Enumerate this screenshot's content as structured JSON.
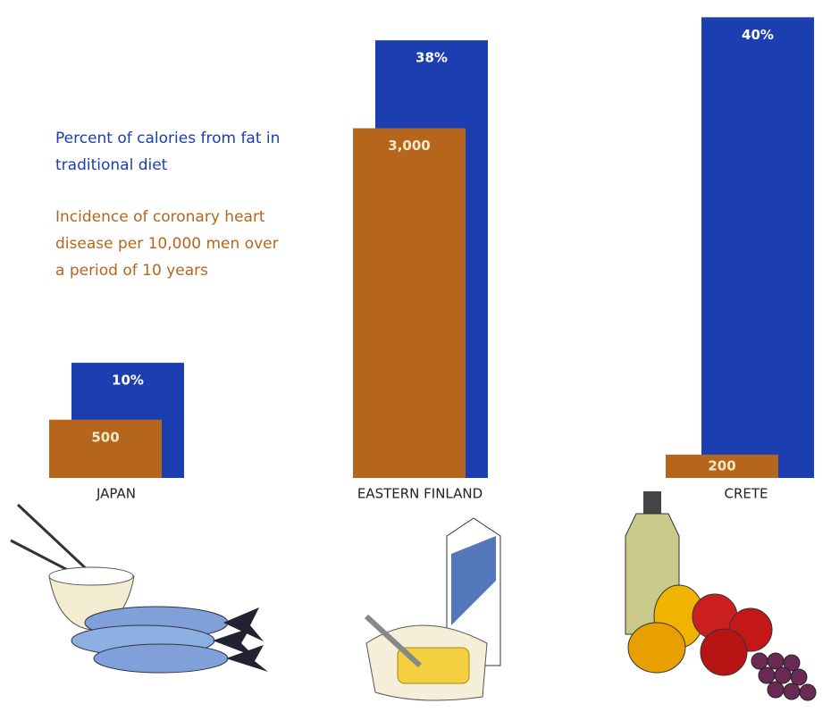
{
  "chart_data": {
    "type": "bar",
    "categories": [
      "JAPAN",
      "EASTERN FINLAND",
      "CRETE"
    ],
    "series": [
      {
        "name": "Percent of calories from fat in traditional diet",
        "color": "#1b3fb0",
        "values": [
          10,
          38,
          40
        ],
        "value_labels": [
          "10%",
          "38%",
          "40%"
        ]
      },
      {
        "name": "Incidence of coronary heart disease per 10,000 men over a period of 10 years",
        "color": "#b5661c",
        "axis": "y2",
        "values": [
          500,
          3000,
          200
        ],
        "value_labels": [
          "500",
          "3,000",
          "200"
        ]
      }
    ],
    "ylim": [
      0,
      41.5
    ],
    "y2lim": [
      0,
      4100
    ]
  }
}
